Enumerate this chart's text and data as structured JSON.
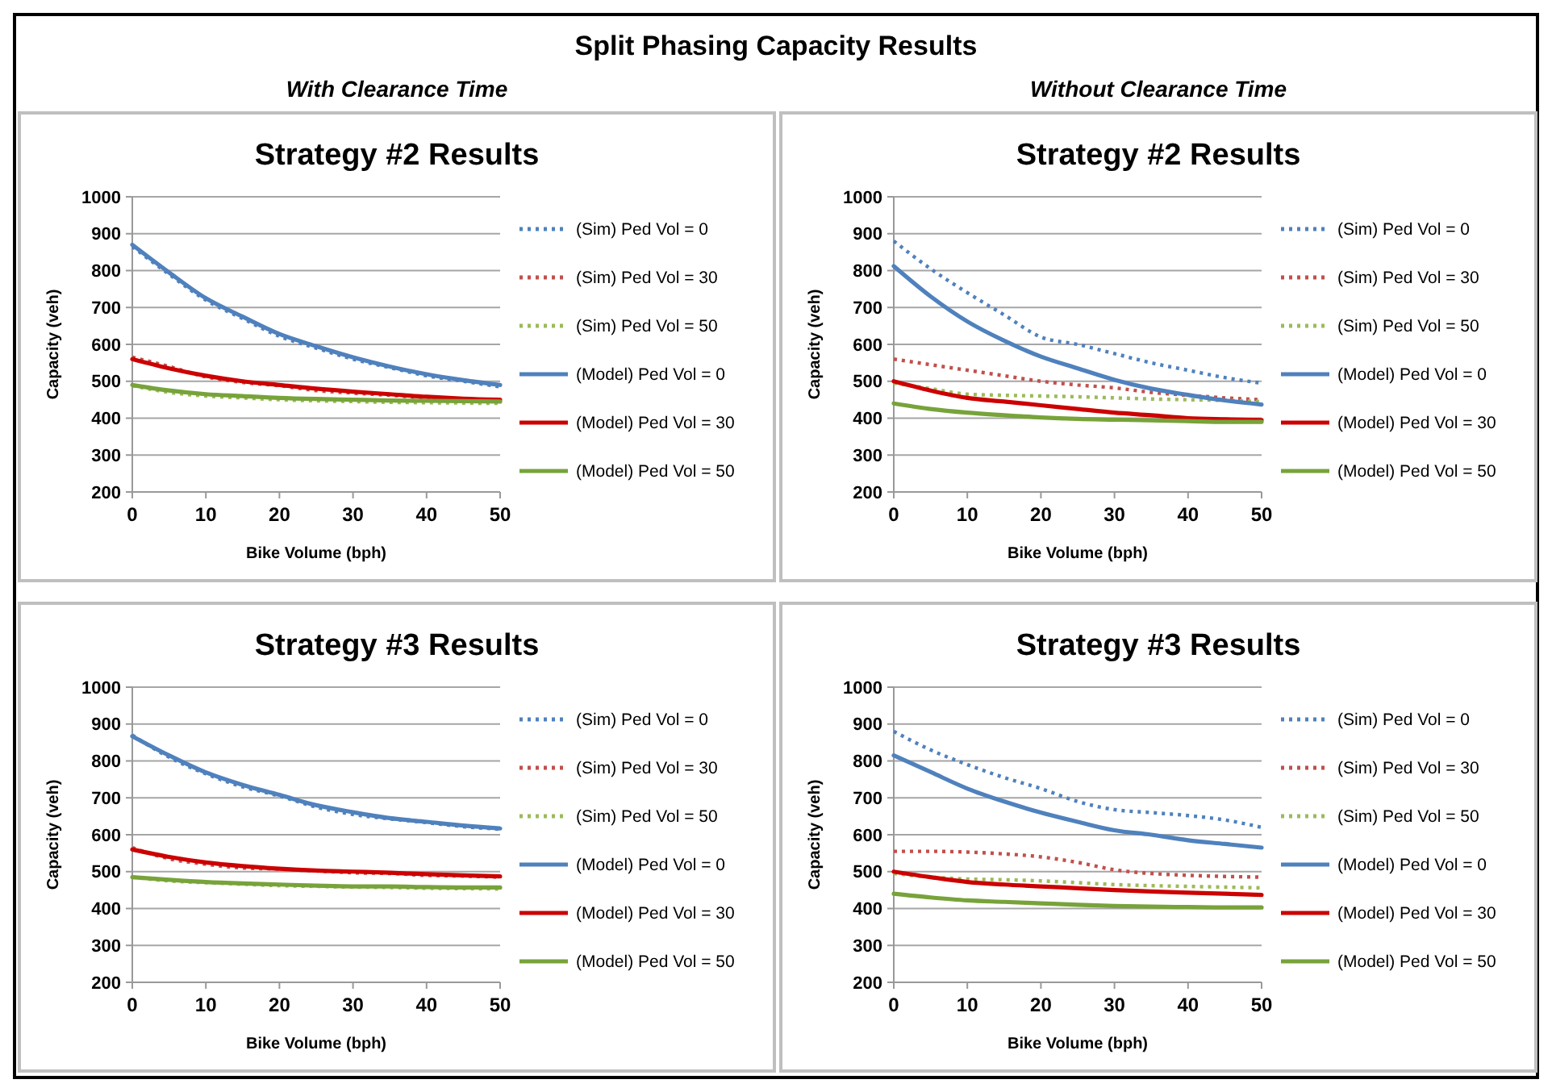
{
  "chart_data": [
    {
      "type": "line",
      "title": "Strategy #2 Results",
      "subtitle": "With Clearance Time",
      "annotations": [
        "Split Phasing Capacity Results"
      ],
      "xlabel": "Bike Volume (bph)",
      "ylabel": "Capacity (veh)",
      "x": [
        0,
        5,
        10,
        15,
        20,
        25,
        30,
        35,
        40,
        45,
        50
      ],
      "xlim": [
        0,
        50
      ],
      "xticks": [
        0,
        10,
        20,
        30,
        40,
        50
      ],
      "ylim": [
        200,
        1000
      ],
      "yticks": [
        200,
        300,
        400,
        500,
        600,
        700,
        800,
        900,
        1000
      ],
      "grid": "y",
      "legend": "right",
      "marker": "none",
      "series": [
        {
          "name": "(Sim) Ped Vol = 0",
          "color": "#4f81bd",
          "line_style": "dotted",
          "values": [
            865,
            790,
            720,
            670,
            622,
            590,
            560,
            537,
            515,
            500,
            485
          ]
        },
        {
          "name": "(Sim) Ped Vol = 30",
          "color": "#c0504d",
          "line_style": "dotted",
          "values": [
            565,
            540,
            512,
            497,
            488,
            475,
            468,
            462,
            455,
            450,
            448
          ]
        },
        {
          "name": "(Sim) Ped Vol = 50",
          "color": "#9bbb59",
          "line_style": "dotted",
          "values": [
            488,
            470,
            460,
            455,
            450,
            447,
            445,
            443,
            442,
            441,
            440
          ]
        },
        {
          "name": "(Model) Ped Vol = 0",
          "color": "#4f81bd",
          "line_style": "solid",
          "values": [
            870,
            795,
            725,
            675,
            628,
            595,
            565,
            540,
            519,
            503,
            490
          ]
        },
        {
          "name": "(Model) Ped Vol = 30",
          "color": "#cc0000",
          "line_style": "solid",
          "values": [
            560,
            535,
            515,
            500,
            490,
            480,
            472,
            465,
            458,
            453,
            450
          ]
        },
        {
          "name": "(Model) Ped Vol = 50",
          "color": "#77a33a",
          "line_style": "solid",
          "values": [
            490,
            475,
            465,
            460,
            455,
            452,
            450,
            448,
            447,
            446,
            445
          ]
        }
      ]
    },
    {
      "type": "line",
      "title": "Strategy #2 Results",
      "subtitle": "Without Clearance Time",
      "xlabel": "Bike Volume (bph)",
      "ylabel": "Capacity (veh)",
      "x": [
        0,
        5,
        10,
        15,
        20,
        25,
        30,
        35,
        40,
        45,
        50
      ],
      "xlim": [
        0,
        50
      ],
      "xticks": [
        0,
        10,
        20,
        30,
        40,
        50
      ],
      "ylim": [
        200,
        1000
      ],
      "yticks": [
        200,
        300,
        400,
        500,
        600,
        700,
        800,
        900,
        1000
      ],
      "grid": "y",
      "legend": "right",
      "marker": "none",
      "series": [
        {
          "name": "(Sim) Ped Vol = 0",
          "color": "#4f81bd",
          "line_style": "dotted",
          "values": [
            880,
            805,
            740,
            680,
            620,
            600,
            575,
            550,
            530,
            510,
            495
          ]
        },
        {
          "name": "(Sim) Ped Vol = 30",
          "color": "#c0504d",
          "line_style": "dotted",
          "values": [
            560,
            545,
            530,
            515,
            500,
            490,
            482,
            470,
            462,
            455,
            450
          ]
        },
        {
          "name": "(Sim) Ped Vol = 50",
          "color": "#9bbb59",
          "line_style": "dotted",
          "values": [
            495,
            480,
            465,
            462,
            460,
            458,
            455,
            452,
            450,
            448,
            445
          ]
        },
        {
          "name": "(Model) Ped Vol = 0",
          "color": "#4f81bd",
          "line_style": "solid",
          "values": [
            812,
            730,
            662,
            610,
            567,
            535,
            504,
            480,
            463,
            448,
            437
          ]
        },
        {
          "name": "(Model) Ped Vol = 30",
          "color": "#cc0000",
          "line_style": "solid",
          "values": [
            500,
            475,
            455,
            445,
            435,
            425,
            415,
            408,
            400,
            397,
            395
          ]
        },
        {
          "name": "(Model) Ped Vol = 50",
          "color": "#77a33a",
          "line_style": "solid",
          "values": [
            440,
            425,
            415,
            408,
            402,
            398,
            396,
            394,
            392,
            390,
            390
          ]
        }
      ]
    },
    {
      "type": "line",
      "title": "Strategy #3 Results",
      "xlabel": "Bike Volume (bph)",
      "ylabel": "Capacity (veh)",
      "x": [
        0,
        5,
        10,
        15,
        20,
        25,
        30,
        35,
        40,
        45,
        50
      ],
      "xlim": [
        0,
        50
      ],
      "xticks": [
        0,
        10,
        20,
        30,
        40,
        50
      ],
      "ylim": [
        200,
        1000
      ],
      "yticks": [
        200,
        300,
        400,
        500,
        600,
        700,
        800,
        900,
        1000
      ],
      "grid": "y",
      "legend": "right",
      "marker": "none",
      "series": [
        {
          "name": "(Sim) Ped Vol = 0",
          "color": "#4f81bd",
          "line_style": "dotted",
          "values": [
            870,
            810,
            765,
            730,
            705,
            675,
            655,
            643,
            633,
            622,
            615
          ]
        },
        {
          "name": "(Sim) Ped Vol = 30",
          "color": "#c0504d",
          "line_style": "dotted",
          "values": [
            565,
            535,
            520,
            510,
            507,
            502,
            497,
            495,
            490,
            488,
            485
          ]
        },
        {
          "name": "(Sim) Ped Vol = 50",
          "color": "#9bbb59",
          "line_style": "dotted",
          "values": [
            485,
            475,
            470,
            466,
            462,
            460,
            458,
            457,
            455,
            454,
            453
          ]
        },
        {
          "name": "(Model) Ped Vol = 0",
          "color": "#4f81bd",
          "line_style": "solid",
          "values": [
            867,
            815,
            769,
            735,
            708,
            680,
            661,
            645,
            635,
            625,
            617
          ]
        },
        {
          "name": "(Model) Ped Vol = 30",
          "color": "#cc0000",
          "line_style": "solid",
          "values": [
            560,
            540,
            525,
            515,
            508,
            503,
            500,
            497,
            493,
            490,
            487
          ]
        },
        {
          "name": "(Model) Ped Vol = 50",
          "color": "#77a33a",
          "line_style": "solid",
          "values": [
            485,
            478,
            472,
            468,
            465,
            462,
            460,
            460,
            458,
            457,
            457
          ]
        }
      ]
    },
    {
      "type": "line",
      "title": "Strategy #3 Results",
      "xlabel": "Bike Volume (bph)",
      "ylabel": "Capacity (veh)",
      "x": [
        0,
        5,
        10,
        15,
        20,
        25,
        30,
        35,
        40,
        45,
        50
      ],
      "xlim": [
        0,
        50
      ],
      "xticks": [
        0,
        10,
        20,
        30,
        40,
        50
      ],
      "ylim": [
        200,
        1000
      ],
      "yticks": [
        200,
        300,
        400,
        500,
        600,
        700,
        800,
        900,
        1000
      ],
      "grid": "y",
      "legend": "right",
      "marker": "none",
      "series": [
        {
          "name": "(Sim) Ped Vol = 0",
          "color": "#4f81bd",
          "line_style": "dotted",
          "values": [
            880,
            830,
            790,
            755,
            725,
            690,
            668,
            660,
            652,
            640,
            620
          ]
        },
        {
          "name": "(Sim) Ped Vol = 30",
          "color": "#c0504d",
          "line_style": "dotted",
          "values": [
            555,
            555,
            553,
            548,
            540,
            525,
            505,
            495,
            490,
            487,
            485
          ]
        },
        {
          "name": "(Sim) Ped Vol = 50",
          "color": "#9bbb59",
          "line_style": "dotted",
          "values": [
            495,
            485,
            480,
            478,
            475,
            470,
            465,
            462,
            460,
            458,
            456
          ]
        },
        {
          "name": "(Model) Ped Vol = 0",
          "color": "#4f81bd",
          "line_style": "solid",
          "values": [
            815,
            770,
            725,
            690,
            660,
            635,
            612,
            600,
            585,
            575,
            565
          ]
        },
        {
          "name": "(Model) Ped Vol = 30",
          "color": "#cc0000",
          "line_style": "solid",
          "values": [
            500,
            485,
            472,
            465,
            460,
            455,
            450,
            446,
            443,
            440,
            437
          ]
        },
        {
          "name": "(Model) Ped Vol = 50",
          "color": "#77a33a",
          "line_style": "solid",
          "values": [
            440,
            430,
            422,
            418,
            414,
            410,
            407,
            405,
            404,
            403,
            403
          ]
        }
      ]
    }
  ]
}
